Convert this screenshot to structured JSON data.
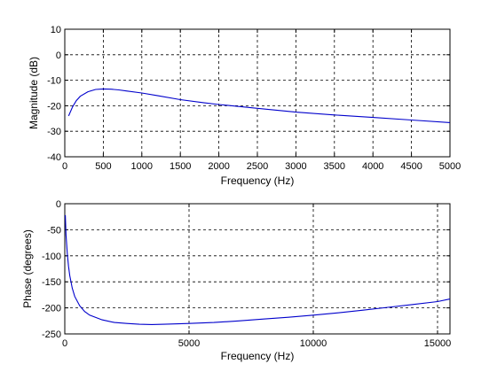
{
  "chart_data": [
    {
      "type": "line",
      "xlabel": "Frequency (Hz)",
      "ylabel": "Magnitude (dB)",
      "xlim": [
        0,
        5000
      ],
      "ylim": [
        -40,
        10
      ],
      "xticks": [
        0,
        500,
        1000,
        1500,
        2000,
        2500,
        3000,
        3500,
        4000,
        4500,
        5000
      ],
      "yticks": [
        -40,
        -30,
        -20,
        -10,
        0,
        10
      ],
      "grid": true,
      "color": "#0000cc",
      "series": [
        {
          "x": [
            50,
            100,
            150,
            200,
            300,
            400,
            500,
            600,
            700,
            800,
            1000,
            1200,
            1500,
            1800,
            2000,
            2500,
            3000,
            3500,
            4000,
            4500,
            5000
          ],
          "y": [
            -24,
            -20.5,
            -18,
            -16.3,
            -14.5,
            -13.6,
            -13.4,
            -13.5,
            -13.8,
            -14.2,
            -15.0,
            -16.0,
            -17.6,
            -18.8,
            -19.5,
            -21.0,
            -22.5,
            -23.6,
            -24.6,
            -25.6,
            -26.6
          ]
        }
      ]
    },
    {
      "type": "line",
      "xlabel": "Frequency (Hz)",
      "ylabel": "Phase (degrees)",
      "xlim": [
        0,
        15500
      ],
      "ylim": [
        -250,
        0
      ],
      "xticks": [
        0,
        5000,
        10000,
        15000
      ],
      "yticks": [
        -250,
        -200,
        -150,
        -100,
        -50,
        0
      ],
      "grid": true,
      "color": "#0000cc",
      "series": [
        {
          "x": [
            20,
            50,
            100,
            150,
            200,
            300,
            400,
            600,
            800,
            1000,
            1500,
            2000,
            2500,
            3000,
            3500,
            4000,
            5000,
            6000,
            7000,
            8000,
            9000,
            10000,
            11000,
            12000,
            13000,
            14000,
            15000,
            15500
          ],
          "y": [
            -22,
            -60,
            -95,
            -120,
            -138,
            -162,
            -178,
            -196,
            -207,
            -214,
            -223,
            -228,
            -230,
            -231.5,
            -232,
            -231.5,
            -230,
            -228,
            -225,
            -221.5,
            -218,
            -214,
            -209.5,
            -204.5,
            -199,
            -193.5,
            -188,
            -183
          ]
        }
      ]
    }
  ]
}
